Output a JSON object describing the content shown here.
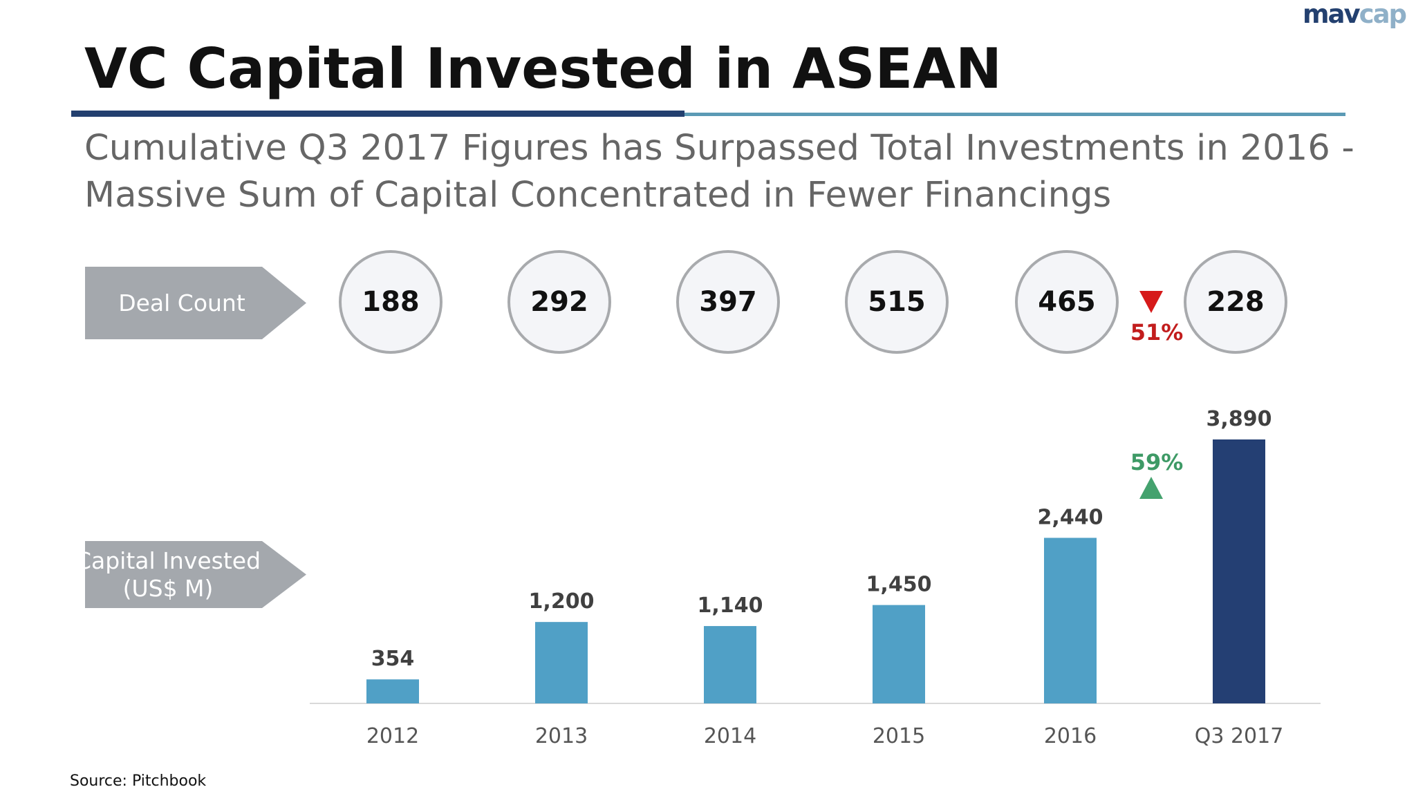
{
  "logo": {
    "part1": "mav",
    "part2": "cap"
  },
  "title": "VC Capital Invested in ASEAN",
  "subtitle": "Cumulative Q3 2017 Figures has Surpassed Total Investments in 2016 - Massive Sum of Capital Concentrated in Fewer Financings",
  "labels": {
    "deal_count": "Deal Count",
    "capital_line1": "Capital Invested",
    "capital_line2": "(US$ M)"
  },
  "deal_counts": [
    "188",
    "292",
    "397",
    "515",
    "465",
    "228"
  ],
  "deal_change": {
    "text": "51%",
    "direction": "down",
    "color": "#c21d1d"
  },
  "capital_change": {
    "text": "59%",
    "direction": "up",
    "color": "#3e9a66"
  },
  "source": "Source: Pitchbook",
  "colors": {
    "bar": "#50a0c6",
    "bar_highlight": "#243f73",
    "arrow_box": "#a4a8ad",
    "title_rule": "#23406f"
  },
  "chart_data": {
    "type": "bar",
    "categories": [
      "2012",
      "2013",
      "2014",
      "2015",
      "2016",
      "Q3 2017"
    ],
    "values": [
      354,
      1200,
      1140,
      1450,
      2440,
      3890
    ],
    "value_labels": [
      "354",
      "1,200",
      "1,140",
      "1,450",
      "2,440",
      "3,890"
    ],
    "ylim": [
      0,
      3890
    ],
    "grid": false,
    "legend": "none"
  }
}
